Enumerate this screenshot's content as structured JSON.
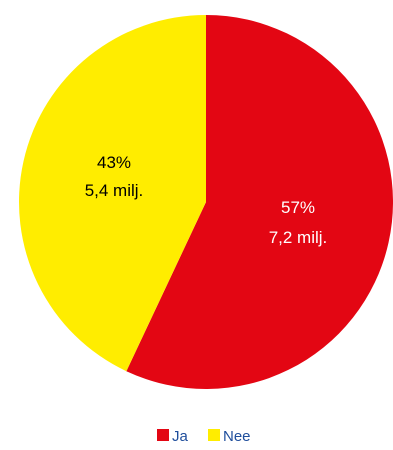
{
  "chart_data": {
    "type": "pie",
    "title": "",
    "start_angle_deg": 0,
    "direction": "clockwise",
    "slices": [
      {
        "name": "Ja",
        "value": 57,
        "percent_label": "57%",
        "amount_label": "7,2 milj.",
        "color": "#e30613",
        "label_color": "#ffffff"
      },
      {
        "name": "Nee",
        "value": 43,
        "percent_label": "43%",
        "amount_label": "5,4 milj.",
        "color": "#ffed00",
        "label_color": "#000000"
      }
    ],
    "legend": {
      "position": "bottom",
      "items": [
        "Ja",
        "Nee"
      ]
    }
  }
}
